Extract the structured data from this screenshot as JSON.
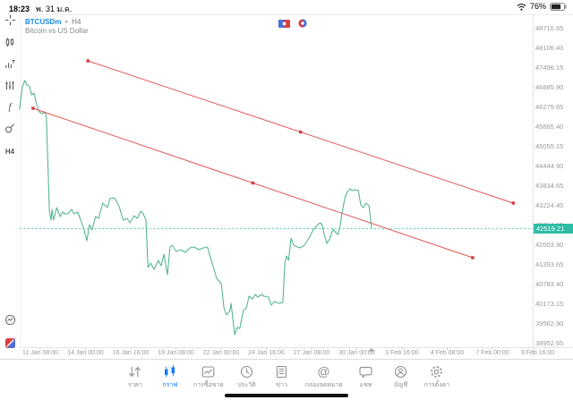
{
  "status_bar": {
    "time": "18:23",
    "date": "พ. 31 ม.ค.",
    "battery_percent": "76%"
  },
  "chart_header": {
    "symbol": "BTCUSDm",
    "separator": "•",
    "timeframe": "H4",
    "description": "Bitcoin vs US Dollar"
  },
  "side_toolbar": {
    "timeframe_label": "H4",
    "icons": [
      "crosshair-icon",
      "chart-type-icon",
      "indicators-icon",
      "objects-icon",
      "function-icon",
      "shapes-icon",
      "timeframe-button",
      "sessions-icon",
      "broker-logo-icon"
    ]
  },
  "colors": {
    "symbol_blue": "#1e88e5",
    "price_line_green": "#57b68e",
    "bid_teal": "#2fbca6",
    "bid_dotted": "#45c4ae",
    "trendline_red": "#e25555",
    "handle_red": "#d03b3b",
    "axis_text_gray": "#9a9a9a",
    "tab_active_blue": "#007aff",
    "tab_inactive_gray": "#8e8e93"
  },
  "chart_data": {
    "type": "line",
    "title": "BTCUSDm, H4: Bitcoin vs US Dollar",
    "bid_price": "42519.21",
    "bid_price_value": 42519.21,
    "grid": "off",
    "legend": "none",
    "y_axis": {
      "labels": [
        "48716.65",
        "48106.40",
        "47496.15",
        "46885.90",
        "46275.65",
        "45665.40",
        "45055.15",
        "44444.90",
        "43834.65",
        "43224.40",
        "42614.15",
        "42003.90",
        "41393.65",
        "40783.40",
        "40173.15",
        "39562.90",
        "38952.65"
      ],
      "min": 38952.65,
      "max": 48716.65,
      "step": 610.25
    },
    "x_axis": {
      "labels": [
        "11 Jan 08:00",
        "14 Jan 00:00",
        "16 Jan 16:00",
        "19 Jan 08:00",
        "22 Jan 00:00",
        "24 Jan 16:00",
        "27 Jan 08:00",
        "30 Jan 00:00",
        "1 Feb 16:00",
        "4 Feb 08:00",
        "7 Feb 00:00",
        "9 Feb 16:00"
      ]
    },
    "series": [
      {
        "name": "BTCUSDm H4 close",
        "color": "#57b68e",
        "points": [
          [
            0.0,
            46220
          ],
          [
            0.005,
            46914
          ],
          [
            0.01,
            47108
          ],
          [
            0.014,
            46969
          ],
          [
            0.019,
            46941
          ],
          [
            0.023,
            46664
          ],
          [
            0.028,
            46719
          ],
          [
            0.033,
            46359
          ],
          [
            0.038,
            46137
          ],
          [
            0.044,
            46081
          ],
          [
            0.049,
            46137
          ],
          [
            0.052,
            45970
          ],
          [
            0.058,
            43058
          ],
          [
            0.061,
            42781
          ],
          [
            0.063,
            43114
          ],
          [
            0.066,
            42781
          ],
          [
            0.072,
            43169
          ],
          [
            0.079,
            42892
          ],
          [
            0.084,
            43031
          ],
          [
            0.089,
            42975
          ],
          [
            0.094,
            42975
          ],
          [
            0.101,
            43114
          ],
          [
            0.106,
            42975
          ],
          [
            0.113,
            43031
          ],
          [
            0.119,
            42781
          ],
          [
            0.124,
            42559
          ],
          [
            0.131,
            42143
          ],
          [
            0.136,
            42642
          ],
          [
            0.141,
            42476
          ],
          [
            0.148,
            42892
          ],
          [
            0.154,
            42836
          ],
          [
            0.162,
            43308
          ],
          [
            0.171,
            43169
          ],
          [
            0.176,
            43446
          ],
          [
            0.185,
            43474
          ],
          [
            0.194,
            43197
          ],
          [
            0.202,
            42781
          ],
          [
            0.209,
            42836
          ],
          [
            0.215,
            42697
          ],
          [
            0.223,
            42919
          ],
          [
            0.229,
            42836
          ],
          [
            0.236,
            43058
          ],
          [
            0.241,
            42975
          ],
          [
            0.246,
            42781
          ],
          [
            0.25,
            41311
          ],
          [
            0.255,
            41450
          ],
          [
            0.262,
            41255
          ],
          [
            0.27,
            41533
          ],
          [
            0.276,
            41366
          ],
          [
            0.281,
            41727
          ],
          [
            0.288,
            41089
          ],
          [
            0.293,
            41949
          ],
          [
            0.297,
            42004
          ],
          [
            0.305,
            41810
          ],
          [
            0.314,
            41866
          ],
          [
            0.323,
            41782
          ],
          [
            0.332,
            41921
          ],
          [
            0.34,
            41949
          ],
          [
            0.349,
            41866
          ],
          [
            0.358,
            41921
          ],
          [
            0.366,
            41949
          ],
          [
            0.375,
            41450
          ],
          [
            0.384,
            40978
          ],
          [
            0.393,
            40812
          ],
          [
            0.398,
            40063
          ],
          [
            0.403,
            39841
          ],
          [
            0.41,
            39980
          ],
          [
            0.412,
            40202
          ],
          [
            0.419,
            39231
          ],
          [
            0.424,
            39453
          ],
          [
            0.429,
            39425
          ],
          [
            0.436,
            39980
          ],
          [
            0.442,
            40063
          ],
          [
            0.447,
            40424
          ],
          [
            0.454,
            40340
          ],
          [
            0.459,
            40479
          ],
          [
            0.464,
            40396
          ],
          [
            0.471,
            40479
          ],
          [
            0.476,
            40424
          ],
          [
            0.485,
            40396
          ],
          [
            0.49,
            40146
          ],
          [
            0.497,
            40257
          ],
          [
            0.506,
            40202
          ],
          [
            0.513,
            40229
          ],
          [
            0.517,
            41450
          ],
          [
            0.52,
            41672
          ],
          [
            0.524,
            41533
          ],
          [
            0.529,
            42226
          ],
          [
            0.534,
            42004
          ],
          [
            0.541,
            41949
          ],
          [
            0.546,
            41921
          ],
          [
            0.555,
            42004
          ],
          [
            0.564,
            42226
          ],
          [
            0.572,
            42476
          ],
          [
            0.581,
            42642
          ],
          [
            0.586,
            42697
          ],
          [
            0.59,
            42614
          ],
          [
            0.593,
            42365
          ],
          [
            0.599,
            42060
          ],
          [
            0.604,
            42198
          ],
          [
            0.611,
            42503
          ],
          [
            0.616,
            42392
          ],
          [
            0.621,
            42337
          ],
          [
            0.625,
            42642
          ],
          [
            0.628,
            42975
          ],
          [
            0.634,
            43474
          ],
          [
            0.639,
            43668
          ],
          [
            0.644,
            43751
          ],
          [
            0.649,
            43696
          ],
          [
            0.654,
            43723
          ],
          [
            0.66,
            43696
          ],
          [
            0.665,
            43252
          ],
          [
            0.67,
            43169
          ],
          [
            0.675,
            43308
          ],
          [
            0.681,
            43224
          ],
          [
            0.686,
            42519
          ]
        ]
      }
    ],
    "trendlines": [
      {
        "name": "upper-trendline",
        "color": "#e25555",
        "p1": [
          0.133,
          47718
        ],
        "p2": [
          0.962,
          43308
        ]
      },
      {
        "name": "lower-trendline",
        "color": "#e25555",
        "p1": [
          0.026,
          46248
        ],
        "p2": [
          0.883,
          41616
        ]
      }
    ]
  },
  "tab_bar": {
    "items": [
      {
        "label": "ราคา",
        "icon": "quotes-icon",
        "active": false
      },
      {
        "label": "กราฟ",
        "icon": "charts-icon",
        "active": true
      },
      {
        "label": "การซื้อขาย",
        "icon": "trade-icon",
        "active": false
      },
      {
        "label": "ประวัติ",
        "icon": "history-icon",
        "active": false
      },
      {
        "label": "ข่าว",
        "icon": "news-icon",
        "active": false
      },
      {
        "label": "กล่องจดหมาย",
        "icon": "mailbox-icon",
        "active": false
      },
      {
        "label": "แชท",
        "icon": "chat-icon",
        "active": false
      },
      {
        "label": "บัญชี",
        "icon": "accounts-icon",
        "active": false
      },
      {
        "label": "การตั้งค่า",
        "icon": "settings-icon",
        "active": false
      }
    ]
  }
}
